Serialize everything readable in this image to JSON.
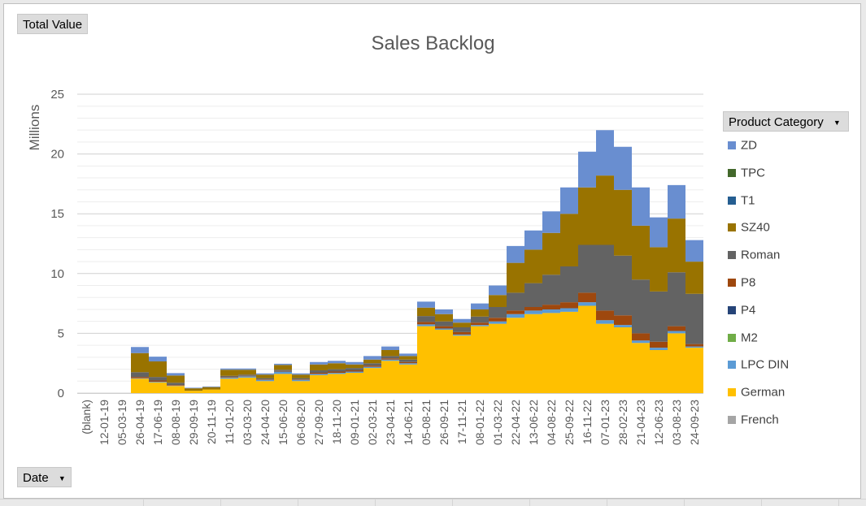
{
  "pivot": {
    "value_field": "Total Value",
    "axis_field": "Date",
    "legend_field": "Product Category"
  },
  "chart_data": {
    "type": "area",
    "stacked": true,
    "title": "Sales Backlog",
    "ylabel": "Millions",
    "xlabel": "",
    "ylim": [
      0,
      25
    ],
    "yticks": [
      0,
      5,
      10,
      15,
      20,
      25
    ],
    "grid": true,
    "legend_position": "right",
    "categories": [
      "(blank)",
      "12-01-19",
      "05-03-19",
      "26-04-19",
      "17-06-19",
      "08-08-19",
      "29-09-19",
      "20-11-19",
      "11-01-20",
      "03-03-20",
      "24-04-20",
      "15-06-20",
      "06-08-20",
      "27-09-20",
      "18-11-20",
      "09-01-21",
      "02-03-21",
      "23-04-21",
      "14-06-21",
      "05-08-21",
      "26-09-21",
      "17-11-21",
      "08-01-22",
      "01-03-22",
      "22-04-22",
      "13-06-22",
      "04-08-22",
      "25-09-22",
      "16-11-22",
      "07-01-23",
      "28-02-23",
      "21-04-23",
      "12-06-23",
      "03-08-23",
      "24-09-23"
    ],
    "series": [
      {
        "name": "French",
        "color": "#a5a5a5",
        "values": [
          0,
          0,
          0,
          0,
          0,
          0,
          0,
          0,
          0,
          0,
          0,
          0,
          0,
          0,
          0,
          0,
          0,
          0,
          0,
          0,
          0,
          0,
          0,
          0,
          0,
          0,
          0,
          0,
          0,
          0,
          0,
          0,
          0,
          0,
          0
        ]
      },
      {
        "name": "German",
        "color": "#ffc000",
        "values": [
          0,
          0,
          0,
          1.2,
          0.9,
          0.6,
          0.2,
          0.3,
          1.2,
          1.3,
          1.0,
          1.6,
          1.0,
          1.5,
          1.6,
          1.7,
          2.1,
          2.7,
          2.4,
          5.6,
          5.3,
          4.8,
          5.6,
          5.8,
          6.3,
          6.6,
          6.7,
          6.8,
          7.3,
          5.8,
          5.5,
          4.2,
          3.6,
          5.0,
          3.8
        ]
      },
      {
        "name": "LPC DIN",
        "color": "#5b9bd5",
        "values": [
          0,
          0,
          0,
          0.05,
          0.05,
          0.02,
          0,
          0,
          0.1,
          0.1,
          0.1,
          0.2,
          0.1,
          0.1,
          0.1,
          0.1,
          0.1,
          0.1,
          0.1,
          0.15,
          0.1,
          0.1,
          0.1,
          0.2,
          0.3,
          0.3,
          0.3,
          0.3,
          0.3,
          0.3,
          0.2,
          0.2,
          0.2,
          0.2,
          0.1
        ]
      },
      {
        "name": "M2",
        "color": "#70ad47",
        "values": [
          0,
          0,
          0,
          0,
          0,
          0,
          0,
          0,
          0,
          0,
          0,
          0,
          0,
          0,
          0,
          0,
          0,
          0,
          0,
          0,
          0,
          0,
          0,
          0,
          0,
          0,
          0,
          0,
          0,
          0,
          0,
          0,
          0,
          0,
          0
        ]
      },
      {
        "name": "P4",
        "color": "#264478",
        "values": [
          0,
          0,
          0,
          0,
          0,
          0,
          0,
          0,
          0,
          0,
          0,
          0,
          0,
          0,
          0,
          0,
          0,
          0,
          0,
          0,
          0,
          0,
          0,
          0,
          0,
          0,
          0,
          0,
          0,
          0,
          0,
          0,
          0,
          0,
          0
        ]
      },
      {
        "name": "P8",
        "color": "#9e480e",
        "values": [
          0,
          0,
          0,
          0.1,
          0.1,
          0.05,
          0,
          0,
          0.05,
          0.05,
          0.05,
          0.05,
          0.05,
          0.1,
          0.1,
          0.1,
          0.1,
          0.1,
          0.1,
          0.2,
          0.2,
          0.2,
          0.2,
          0.3,
          0.3,
          0.3,
          0.4,
          0.5,
          0.8,
          0.8,
          0.8,
          0.6,
          0.5,
          0.4,
          0.2
        ]
      },
      {
        "name": "Roman",
        "color": "#636363",
        "values": [
          0,
          0,
          0,
          0.4,
          0.3,
          0.2,
          0,
          0,
          0.1,
          0.1,
          0.1,
          0.1,
          0.1,
          0.2,
          0.2,
          0.2,
          0.2,
          0.2,
          0.2,
          0.5,
          0.4,
          0.4,
          0.5,
          0.9,
          1.5,
          2.0,
          2.5,
          3.0,
          4.0,
          5.5,
          5.0,
          4.5,
          4.2,
          4.5,
          4.2
        ]
      },
      {
        "name": "SZ40",
        "color": "#997300",
        "values": [
          0,
          0,
          0,
          1.6,
          1.3,
          0.6,
          0.2,
          0.2,
          0.5,
          0.4,
          0.3,
          0.4,
          0.3,
          0.5,
          0.5,
          0.3,
          0.3,
          0.5,
          0.3,
          0.7,
          0.6,
          0.4,
          0.6,
          1.0,
          2.5,
          2.8,
          3.5,
          4.4,
          4.8,
          5.8,
          5.5,
          4.5,
          3.7,
          4.5,
          2.7
        ]
      },
      {
        "name": "T1",
        "color": "#255e91",
        "values": [
          0,
          0,
          0,
          0,
          0,
          0,
          0,
          0,
          0,
          0,
          0,
          0,
          0,
          0,
          0,
          0,
          0,
          0,
          0,
          0,
          0,
          0,
          0,
          0,
          0,
          0,
          0,
          0,
          0,
          0,
          0,
          0,
          0,
          0,
          0
        ]
      },
      {
        "name": "TPC",
        "color": "#43682b",
        "values": [
          0,
          0,
          0,
          0,
          0,
          0,
          0,
          0,
          0,
          0,
          0,
          0,
          0,
          0,
          0,
          0,
          0,
          0,
          0,
          0,
          0,
          0,
          0,
          0,
          0,
          0,
          0,
          0,
          0,
          0,
          0,
          0,
          0,
          0,
          0
        ]
      },
      {
        "name": "ZD",
        "color": "#698ed0",
        "values": [
          0,
          0,
          0,
          0.5,
          0.4,
          0.2,
          0.05,
          0.05,
          0.1,
          0.1,
          0.1,
          0.1,
          0.1,
          0.2,
          0.2,
          0.2,
          0.3,
          0.3,
          0.2,
          0.5,
          0.4,
          0.3,
          0.5,
          0.8,
          1.4,
          1.6,
          1.8,
          2.2,
          3.0,
          3.8,
          3.6,
          3.2,
          2.5,
          2.8,
          1.8
        ]
      }
    ]
  }
}
